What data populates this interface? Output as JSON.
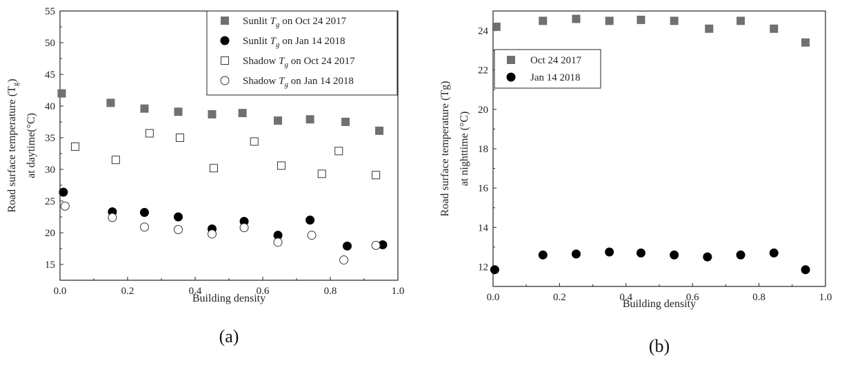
{
  "chart_data": [
    {
      "type": "scatter",
      "panel_label": "(a)",
      "xlabel": "Building density",
      "ylabel_line1": "Road surface temperature (T",
      "ylabel_sub": "g",
      "ylabel_line1_end": ")",
      "ylabel_line2": "at daytime(°C)",
      "xlim": [
        0.0,
        1.0
      ],
      "ylim": [
        12.5,
        55
      ],
      "xticks": [
        "0.0",
        "0.2",
        "0.4",
        "0.6",
        "0.8",
        "1.0"
      ],
      "yticks": [
        "15",
        "20",
        "25",
        "30",
        "35",
        "40",
        "45",
        "50",
        "55"
      ],
      "legend_position": "top-right",
      "series": [
        {
          "name": "Sunlit Tg on Oct 24 2017",
          "legend_prefix": "Sunlit ",
          "legend_var": "T",
          "legend_sub": "g",
          "legend_suffix": " on Oct 24 2017",
          "marker": "square-filled",
          "x": [
            0.005,
            0.15,
            0.25,
            0.35,
            0.45,
            0.54,
            0.645,
            0.74,
            0.845,
            0.945
          ],
          "y": [
            42.0,
            40.5,
            39.6,
            39.1,
            38.7,
            38.9,
            37.7,
            37.9,
            37.5,
            36.1
          ]
        },
        {
          "name": "Sunlit Tg on Jan 14 2018",
          "legend_prefix": "Sunlit ",
          "legend_var": "T",
          "legend_sub": "g",
          "legend_suffix": " on Jan 14 2018",
          "marker": "circle-filled",
          "x": [
            0.01,
            0.155,
            0.25,
            0.35,
            0.45,
            0.545,
            0.645,
            0.74,
            0.85,
            0.955
          ],
          "y": [
            26.4,
            23.3,
            23.2,
            22.5,
            20.6,
            21.8,
            19.6,
            22.0,
            17.9,
            18.1
          ]
        },
        {
          "name": "Shadow Tg on Oct 24 2017",
          "legend_prefix": "Shadow ",
          "legend_var": "T",
          "legend_sub": "g",
          "legend_suffix": " on Oct 24 2017",
          "marker": "square-open",
          "x": [
            0.045,
            0.165,
            0.265,
            0.355,
            0.455,
            0.575,
            0.655,
            0.775,
            0.825,
            0.935
          ],
          "y": [
            33.6,
            31.5,
            35.7,
            35.0,
            30.2,
            34.4,
            30.6,
            29.3,
            32.9,
            29.1
          ]
        },
        {
          "name": "Shadow Tg on Jan 14 2018",
          "legend_prefix": "Shadow ",
          "legend_var": "T",
          "legend_sub": "g",
          "legend_suffix": " on Jan 14 2018",
          "marker": "circle-open",
          "x": [
            0.015,
            0.155,
            0.25,
            0.35,
            0.45,
            0.545,
            0.645,
            0.745,
            0.84,
            0.935
          ],
          "y": [
            24.2,
            22.4,
            20.9,
            20.5,
            19.8,
            20.8,
            18.5,
            19.6,
            15.7,
            18.0
          ]
        }
      ]
    },
    {
      "type": "scatter",
      "panel_label": "(b)",
      "xlabel": "Building density",
      "ylabel_line1": "Road surface temperature (Tg)",
      "ylabel_line2": "at nighttime (°C)",
      "xlim": [
        0.0,
        1.0
      ],
      "ylim": [
        11,
        25
      ],
      "xticks": [
        "0.0",
        "0.2",
        "0.4",
        "0.6",
        "0.8",
        "1.0"
      ],
      "yticks": [
        "12",
        "14",
        "16",
        "18",
        "20",
        "22",
        "24"
      ],
      "legend_position": "top-left",
      "series": [
        {
          "name": "Oct 24 2017",
          "marker": "square-filled",
          "x": [
            0.01,
            0.15,
            0.25,
            0.35,
            0.445,
            0.545,
            0.65,
            0.745,
            0.845,
            0.94
          ],
          "y": [
            24.2,
            24.5,
            24.6,
            24.5,
            24.55,
            24.5,
            24.1,
            24.5,
            24.1,
            23.4
          ]
        },
        {
          "name": "Jan 14 2018",
          "marker": "circle-filled",
          "x": [
            0.005,
            0.15,
            0.25,
            0.35,
            0.445,
            0.545,
            0.645,
            0.745,
            0.845,
            0.94
          ],
          "y": [
            11.85,
            12.6,
            12.65,
            12.75,
            12.7,
            12.6,
            12.5,
            12.6,
            12.7,
            11.85
          ]
        }
      ]
    }
  ]
}
